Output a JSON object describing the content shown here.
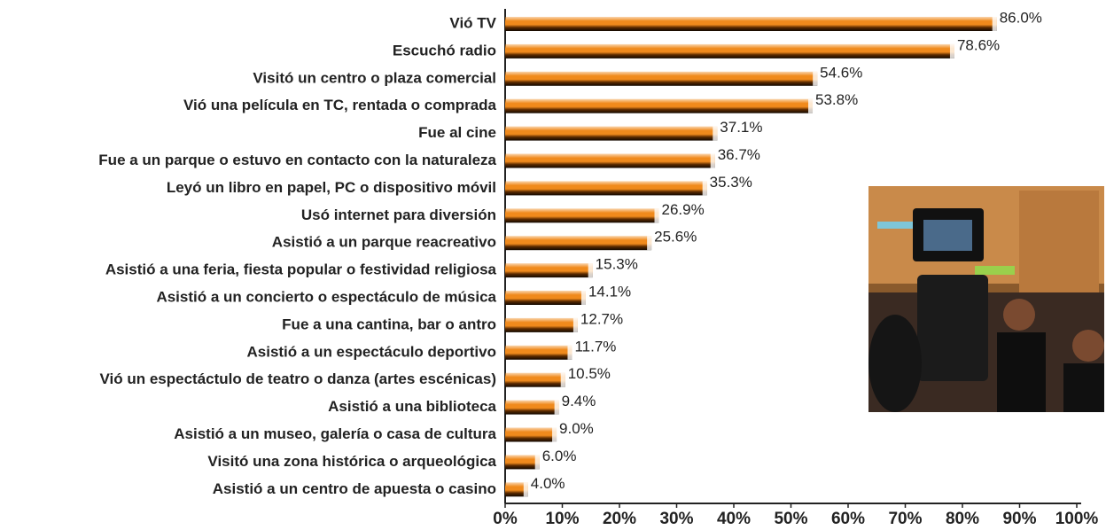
{
  "chart_data": {
    "type": "bar",
    "orientation": "horizontal",
    "color": "#f08a1c",
    "categories": [
      "Vió TV",
      "Escuchó radio",
      "Visitó un centro o plaza comercial",
      "Vió una película en TC, rentada o comprada",
      "Fue al cine",
      "Fue a un parque o estuvo en contacto con la naturaleza",
      "Leyó un libro en papel, PC o dispositivo móvil",
      "Usó internet para diversión",
      "Asistió a un parque reacreativo",
      "Asistió a una feria, fiesta popular o festividad religiosa",
      "Asistió a un concierto o espectáculo de música",
      "Fue a una cantina, bar o antro",
      "Asistió a un espectáculo deportivo",
      "Vió un espectáctulo de teatro o danza (artes escénicas)",
      "Asistió a una biblioteca",
      "Asistió a un museo, galería o casa de cultura",
      "Visitó una zona histórica o arqueológica",
      "Asistió a un centro de apuesta o casino"
    ],
    "values": [
      86.0,
      78.6,
      54.6,
      53.8,
      37.1,
      36.7,
      35.3,
      26.9,
      25.6,
      15.3,
      14.1,
      12.7,
      11.7,
      10.5,
      9.4,
      9.0,
      6.0,
      4.0
    ],
    "value_labels": [
      "86.0%",
      "78.6%",
      "54.6%",
      "53.8%",
      "37.1%",
      "36.7%",
      "35.3%",
      "26.9%",
      "25.6%",
      "15.3%",
      "14.1%",
      "12.7%",
      "11.7%",
      "10.5%",
      "9.4%",
      "9.0%",
      "6.0%",
      "4.0%"
    ],
    "xlim": [
      0,
      100
    ],
    "xticks": [
      {
        "value": 0,
        "label": "0%"
      },
      {
        "value": 10,
        "label": "10%"
      },
      {
        "value": 20,
        "label": "20%"
      },
      {
        "value": 30,
        "label": "30%"
      },
      {
        "value": 40,
        "label": "40%"
      },
      {
        "value": 50,
        "label": "50%"
      },
      {
        "value": 60,
        "label": "60%"
      },
      {
        "value": 70,
        "label": "70%"
      },
      {
        "value": 80,
        "label": "80%"
      },
      {
        "value": 90,
        "label": "90%"
      },
      {
        "value": 100,
        "label": "100%"
      }
    ]
  }
}
